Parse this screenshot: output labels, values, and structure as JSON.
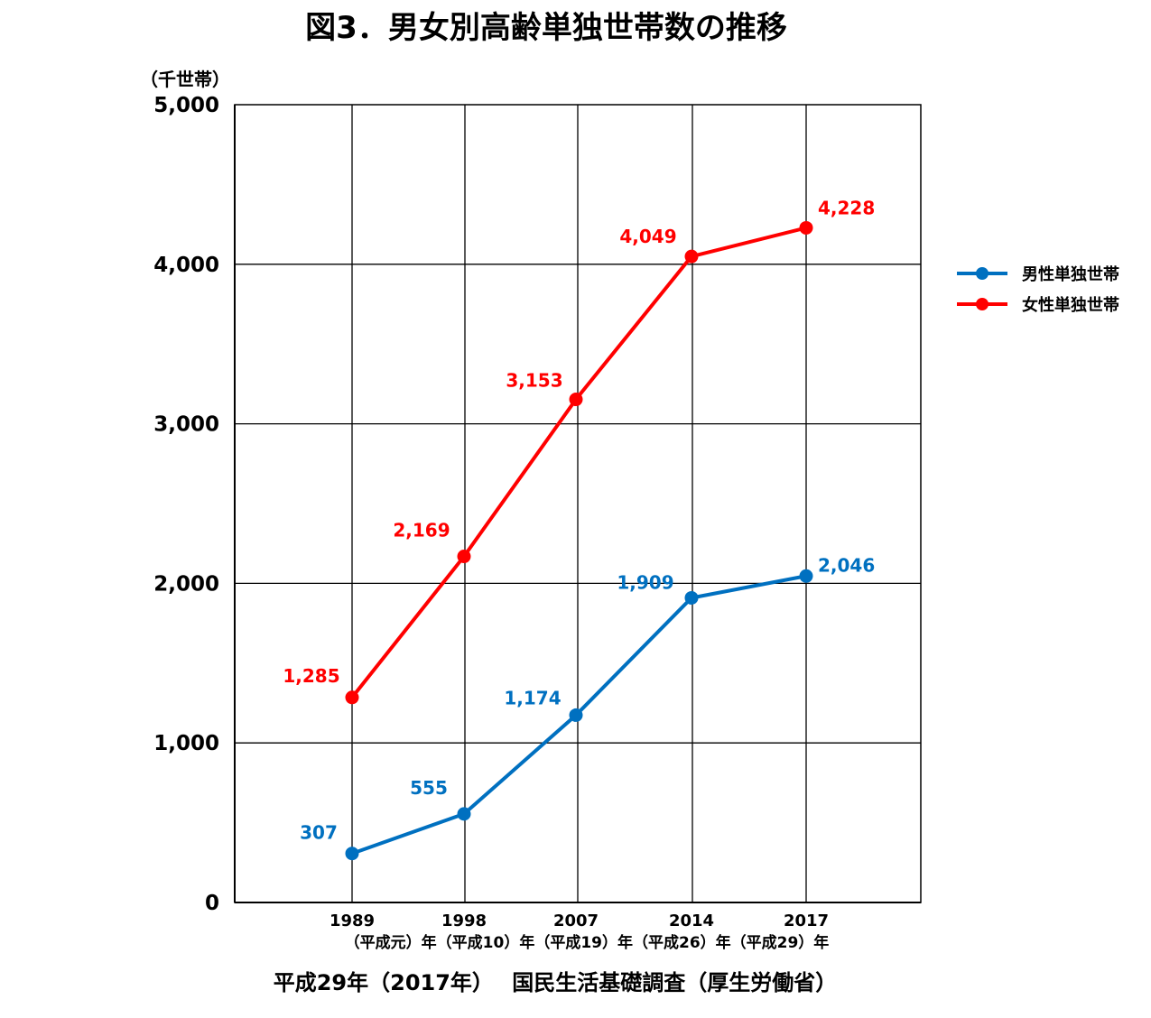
{
  "chart_data": {
    "type": "line",
    "title": "図3．男女別高齢単独世帯数の推移",
    "ylabel": "（千世帯）",
    "ylim": [
      0,
      5000
    ],
    "yticks": [
      "0",
      "1,000",
      "2,000",
      "3,000",
      "4,000",
      "5,000"
    ],
    "ytick_values": [
      0,
      1000,
      2000,
      3000,
      4000,
      5000
    ],
    "x": [
      "1989",
      "1998",
      "2007",
      "2014",
      "2017"
    ],
    "x_sublabel_text": "（平成元）年（平成10）年（平成19）年（平成26）年（平成29）年",
    "grid": true,
    "legend_position": "right",
    "series": [
      {
        "name": "男性単独世帯",
        "color": "#0070c0",
        "values": [
          307,
          555,
          1174,
          1909,
          2046
        ],
        "labels": [
          "307",
          "555",
          "1,174",
          "1,909",
          "2,046"
        ]
      },
      {
        "name": "女性単独世帯",
        "color": "#ff0000",
        "values": [
          1285,
          2169,
          3153,
          4049,
          4228
        ],
        "labels": [
          "1,285",
          "2,169",
          "3,153",
          "4,049",
          "4,228"
        ]
      }
    ],
    "source": "平成29年（2017年）　 国民生活基礎調査（厚生労働省）"
  }
}
